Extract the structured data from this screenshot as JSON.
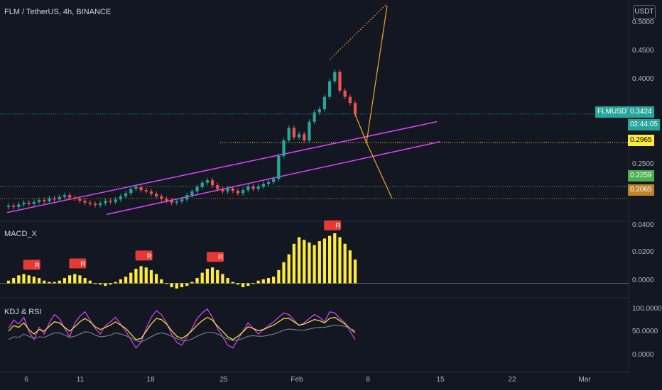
{
  "header": {
    "symbol": "FLM / TetherUS, 4h, BINANCE",
    "currency_button": "USDT"
  },
  "panes": {
    "macd_label": "MACD_X",
    "kdj_label": "KDJ & RSI"
  },
  "price_axis": [
    "0.5000",
    "0.4500",
    "0.4000",
    "0.2500"
  ],
  "price_tags": {
    "symbol_name": "FLMUSDT",
    "last_price": "0.3424",
    "countdown": "02:44:05",
    "level_yellow": "0.2965",
    "level_green": "0.2259",
    "level_orange": "0.2065"
  },
  "macd_axis": [
    "0.0400",
    "0.0200",
    "0.0000"
  ],
  "kdj_axis": [
    "100.0000",
    "50.0000",
    "0.0000"
  ],
  "x_axis": [
    "6",
    "11",
    "18",
    "25",
    "Feb",
    "8",
    "15",
    "22",
    "Mar"
  ],
  "signal_badges": [
    "R",
    "R",
    "R",
    "R",
    "R"
  ],
  "colors": {
    "background": "#131722",
    "up": "#26a69a",
    "down": "#ef5350",
    "channel": "#e040fb",
    "arrow": "#f5a623",
    "macd_hist": "#ffeb3b",
    "rsi": "#e040fb",
    "kdj": "#ffeb3b"
  },
  "chart_data": [
    {
      "type": "candlestick",
      "title": "FLM / TetherUS, 4h, BINANCE",
      "ylim": [
        0.17,
        0.52
      ],
      "close_series": [
        0.195,
        0.193,
        0.197,
        0.2,
        0.198,
        0.201,
        0.204,
        0.202,
        0.207,
        0.205,
        0.209,
        0.212,
        0.208,
        0.206,
        0.203,
        0.2,
        0.198,
        0.196,
        0.199,
        0.203,
        0.201,
        0.205,
        0.21,
        0.215,
        0.222,
        0.225,
        0.22,
        0.218,
        0.214,
        0.21,
        0.206,
        0.203,
        0.2,
        0.202,
        0.205,
        0.212,
        0.218,
        0.225,
        0.232,
        0.236,
        0.228,
        0.222,
        0.218,
        0.223,
        0.219,
        0.215,
        0.22,
        0.226,
        0.222,
        0.226,
        0.23,
        0.233,
        0.238,
        0.275,
        0.3,
        0.32,
        0.305,
        0.31,
        0.3,
        0.33,
        0.345,
        0.35,
        0.37,
        0.395,
        0.41,
        0.38,
        0.37,
        0.36,
        0.342
      ],
      "last_price": 0.3424,
      "horizontal_levels": [
        0.2965,
        0.2259,
        0.2065
      ],
      "ascending_channel": {
        "lower": [
          0.181,
          0.298
        ],
        "upper": [
          0.184,
          0.33
        ]
      }
    },
    {
      "type": "bar",
      "title": "MACD_X",
      "ylim": [
        -0.01,
        0.045
      ],
      "values": [
        0.002,
        0.004,
        0.006,
        0.007,
        0.006,
        0.005,
        0.004,
        0.002,
        0.001,
        0.001,
        0.002,
        0.004,
        0.006,
        0.007,
        0.006,
        0.004,
        0.002,
        0.0,
        -0.001,
        -0.002,
        -0.001,
        0.001,
        0.003,
        0.005,
        0.008,
        0.011,
        0.013,
        0.012,
        0.01,
        0.007,
        0.003,
        0.0,
        -0.003,
        -0.004,
        -0.003,
        -0.002,
        0.001,
        0.004,
        0.008,
        0.011,
        0.012,
        0.01,
        0.007,
        0.004,
        0.001,
        -0.001,
        -0.003,
        -0.002,
        0.0,
        0.002,
        0.003,
        0.004,
        0.005,
        0.01,
        0.016,
        0.022,
        0.03,
        0.035,
        0.033,
        0.031,
        0.029,
        0.032,
        0.034,
        0.036,
        0.038,
        0.035,
        0.03,
        0.025,
        0.018
      ]
    },
    {
      "type": "line",
      "title": "KDJ & RSI",
      "ylim": [
        -15,
        110
      ],
      "series": [
        {
          "values": [
            60,
            75,
            68,
            80,
            55,
            40,
            62,
            50,
            70,
            85,
            78,
            60,
            45,
            70,
            82,
            90,
            75,
            60,
            50,
            65,
            72,
            80,
            68,
            55,
            40,
            25,
            35,
            60,
            80,
            92,
            85,
            70,
            50,
            35,
            30,
            45,
            60,
            78,
            88,
            95,
            80,
            60,
            45,
            30,
            25,
            40,
            55,
            70,
            60,
            50,
            58,
            65,
            72,
            80,
            88,
            85,
            75,
            65,
            70,
            78,
            85,
            80,
            72,
            90,
            88,
            78,
            70,
            55,
            40
          ]
        },
        {
          "values": [
            55,
            65,
            62,
            70,
            58,
            50,
            58,
            55,
            64,
            72,
            70,
            62,
            55,
            63,
            72,
            78,
            72,
            63,
            58,
            62,
            66,
            72,
            66,
            60,
            50,
            40,
            42,
            55,
            68,
            78,
            76,
            68,
            56,
            46,
            42,
            48,
            56,
            66,
            74,
            80,
            75,
            64,
            55,
            45,
            40,
            46,
            54,
            63,
            60,
            56,
            58,
            62,
            66,
            72,
            78,
            78,
            72,
            66,
            68,
            72,
            76,
            74,
            70,
            78,
            80,
            74,
            68,
            60,
            52
          ]
        },
        {
          "values": [
            40,
            45,
            44,
            50,
            46,
            42,
            45,
            44,
            48,
            52,
            52,
            48,
            44,
            46,
            50,
            54,
            53,
            48,
            45,
            46,
            48,
            52,
            50,
            47,
            43,
            38,
            36,
            40,
            45,
            50,
            52,
            50,
            46,
            42,
            38,
            38,
            41,
            46,
            50,
            53,
            53,
            50,
            45,
            41,
            38,
            39,
            42,
            46,
            47,
            46,
            46,
            48,
            50,
            53,
            57,
            59,
            58,
            57,
            57,
            59,
            61,
            62,
            62,
            64,
            66,
            65,
            64,
            60,
            56
          ]
        }
      ]
    }
  ]
}
